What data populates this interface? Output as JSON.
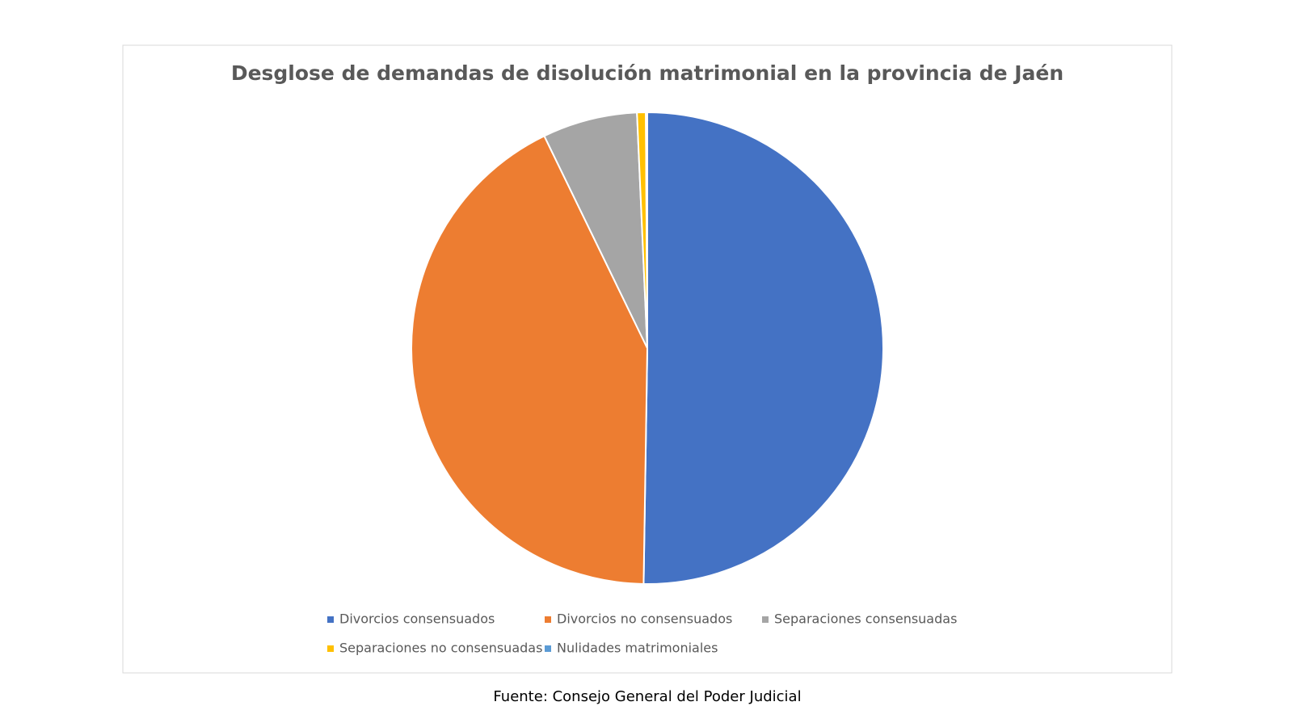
{
  "chart_data": {
    "type": "pie",
    "title": "Desglose de demandas de disolución matrimonial en la provincia de Jaén",
    "categories": [
      "Divorcios consensuados",
      "Divorcios no consensuados",
      "Separaciones consensuadas",
      "Separaciones no consensuadas",
      "Nulidades matrimoniales"
    ],
    "values": [
      50.3,
      42.6,
      6.5,
      0.6,
      0.1
    ],
    "colors": [
      "#4472c4",
      "#ed7d31",
      "#a5a5a5",
      "#ffc000",
      "#5b9bd5"
    ],
    "legend": "bottom",
    "source": "Fuente: Consejo General del Poder Judicial"
  }
}
